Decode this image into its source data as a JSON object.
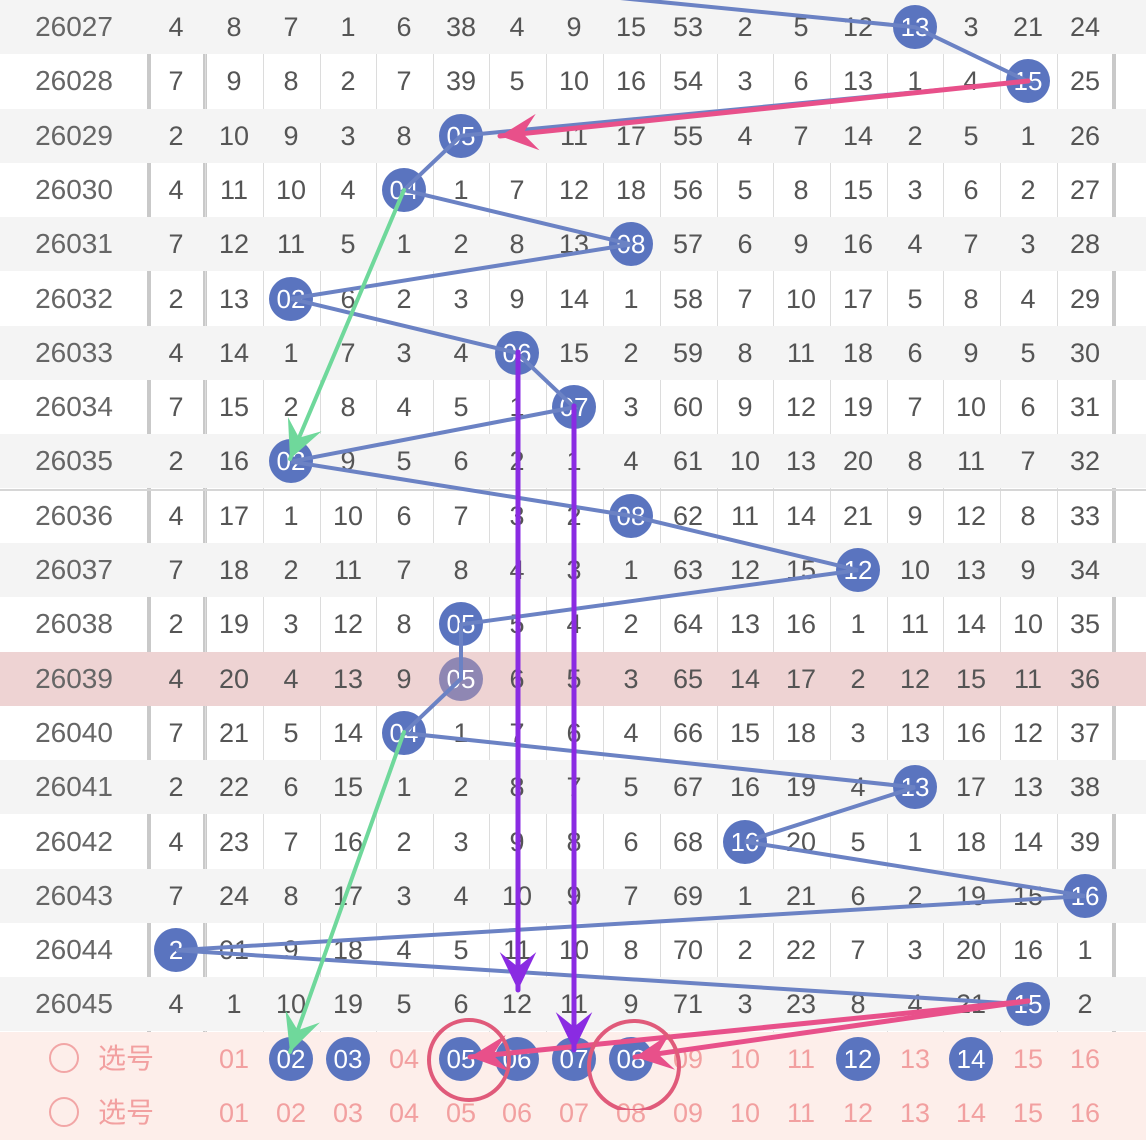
{
  "rows": [
    {
      "issue": "26027",
      "cells": [
        "4",
        "8",
        "7",
        "1",
        "6",
        "38",
        "4",
        "9",
        "15",
        "53",
        "2",
        "5",
        "12",
        "13",
        "3",
        "21",
        "24"
      ],
      "ball_col": 14
    },
    {
      "issue": "26028",
      "cells": [
        "7",
        "9",
        "8",
        "2",
        "7",
        "39",
        "5",
        "10",
        "16",
        "54",
        "3",
        "6",
        "13",
        "1",
        "4",
        "15",
        "25"
      ],
      "ball_col": 16
    },
    {
      "issue": "26029",
      "cells": [
        "2",
        "10",
        "9",
        "3",
        "8",
        "05",
        "11",
        "17",
        "55",
        "4",
        "7",
        "14",
        "2",
        "5",
        "1",
        "26",
        ""
      ],
      "ball_col": 6,
      "layout": "shift"
    },
    {
      "issue": "26030",
      "cells": [
        "4",
        "11",
        "10",
        "4",
        "04",
        "1",
        "7",
        "12",
        "18",
        "56",
        "5",
        "8",
        "15",
        "3",
        "6",
        "2",
        "27"
      ],
      "ball_col": 5
    },
    {
      "issue": "26031",
      "cells": [
        "7",
        "12",
        "11",
        "5",
        "1",
        "2",
        "8",
        "13",
        "08",
        "57",
        "6",
        "9",
        "16",
        "4",
        "7",
        "3",
        "28"
      ],
      "ball_col": 9
    },
    {
      "issue": "26032",
      "cells": [
        "2",
        "13",
        "02",
        "6",
        "2",
        "3",
        "9",
        "14",
        "1",
        "58",
        "7",
        "10",
        "17",
        "5",
        "8",
        "4",
        "29"
      ],
      "ball_col": 3
    },
    {
      "issue": "26033",
      "cells": [
        "4",
        "14",
        "1",
        "7",
        "3",
        "4",
        "06",
        "15",
        "2",
        "59",
        "8",
        "11",
        "18",
        "6",
        "9",
        "5",
        "30"
      ],
      "ball_col": 7
    },
    {
      "issue": "26034",
      "cells": [
        "7",
        "15",
        "2",
        "8",
        "4",
        "5",
        "1",
        "07",
        "3",
        "60",
        "9",
        "12",
        "19",
        "7",
        "10",
        "6",
        "31"
      ],
      "ball_col": 8
    },
    {
      "issue": "26035",
      "cells": [
        "2",
        "16",
        "02",
        "9",
        "5",
        "6",
        "2",
        "1",
        "4",
        "61",
        "10",
        "13",
        "20",
        "8",
        "11",
        "7",
        "32"
      ],
      "ball_col": 3
    },
    {
      "issue": "26036",
      "cells": [
        "4",
        "17",
        "1",
        "10",
        "6",
        "7",
        "3",
        "2",
        "08",
        "62",
        "11",
        "14",
        "21",
        "9",
        "12",
        "8",
        "33"
      ],
      "ball_col": 9
    },
    {
      "issue": "26037",
      "cells": [
        "7",
        "18",
        "2",
        "11",
        "7",
        "8",
        "4",
        "3",
        "1",
        "63",
        "12",
        "15",
        "12",
        "10",
        "13",
        "9",
        "34"
      ],
      "ball_col": 13
    },
    {
      "issue": "26038",
      "cells": [
        "2",
        "19",
        "3",
        "12",
        "8",
        "05",
        "5",
        "4",
        "2",
        "64",
        "13",
        "16",
        "1",
        "11",
        "14",
        "10",
        "35"
      ],
      "ball_col": 6
    },
    {
      "issue": "26039",
      "cells": [
        "4",
        "20",
        "4",
        "13",
        "9",
        "05",
        "6",
        "5",
        "3",
        "65",
        "14",
        "17",
        "2",
        "12",
        "15",
        "11",
        "36"
      ],
      "ball_col": 6
    },
    {
      "issue": "26040",
      "cells": [
        "7",
        "21",
        "5",
        "14",
        "04",
        "1",
        "7",
        "6",
        "4",
        "66",
        "15",
        "18",
        "3",
        "13",
        "16",
        "12",
        "37"
      ],
      "ball_col": 5
    },
    {
      "issue": "26041",
      "cells": [
        "2",
        "22",
        "6",
        "15",
        "1",
        "2",
        "8",
        "7",
        "5",
        "67",
        "16",
        "19",
        "4",
        "13",
        "17",
        "13",
        "38"
      ],
      "ball_col": 14
    },
    {
      "issue": "26042",
      "cells": [
        "4",
        "23",
        "7",
        "16",
        "2",
        "3",
        "9",
        "8",
        "6",
        "68",
        "10",
        "20",
        "5",
        "1",
        "18",
        "14",
        "39"
      ],
      "ball_col": 11
    },
    {
      "issue": "26043",
      "cells": [
        "7",
        "24",
        "8",
        "17",
        "3",
        "4",
        "10",
        "9",
        "7",
        "69",
        "1",
        "21",
        "6",
        "2",
        "19",
        "15",
        "16"
      ],
      "ball_col": 17
    },
    {
      "issue": "26044",
      "cells": [
        "2",
        "01",
        "9",
        "18",
        "4",
        "5",
        "11",
        "10",
        "8",
        "70",
        "2",
        "22",
        "7",
        "3",
        "20",
        "16",
        "1"
      ],
      "ball_col": 1
    },
    {
      "issue": "26045",
      "cells": [
        "4",
        "1",
        "10",
        "19",
        "5",
        "6",
        "12",
        "11",
        "9",
        "71",
        "3",
        "23",
        "8",
        "4",
        "21",
        "15",
        "2"
      ],
      "ball_col": 16
    }
  ],
  "select_rows": [
    {
      "label": "选号",
      "numbers": [
        "01",
        "02",
        "03",
        "04",
        "05",
        "06",
        "07",
        "08",
        "09",
        "10",
        "11",
        "12",
        "13",
        "14",
        "15",
        "16"
      ],
      "selected": [
        "02",
        "03",
        "05",
        "06",
        "07",
        "08",
        "12",
        "14"
      ]
    },
    {
      "label": "选号",
      "numbers": [
        "01",
        "02",
        "03",
        "04",
        "05",
        "06",
        "07",
        "08",
        "09",
        "10",
        "11",
        "12",
        "13",
        "14",
        "15",
        "16"
      ]
    }
  ],
  "highlight_issue": "26039",
  "colors": {
    "ball": "#5a74bf",
    "trend_line": "#6b82c4",
    "arrow_pink": "#e8508a",
    "arrow_green": "#6fd89b",
    "arrow_purple": "#8a2be2",
    "circle_pink": "#e05a7a",
    "row_highlight": "#eed3d3",
    "select_bg": "#fdeeea"
  }
}
